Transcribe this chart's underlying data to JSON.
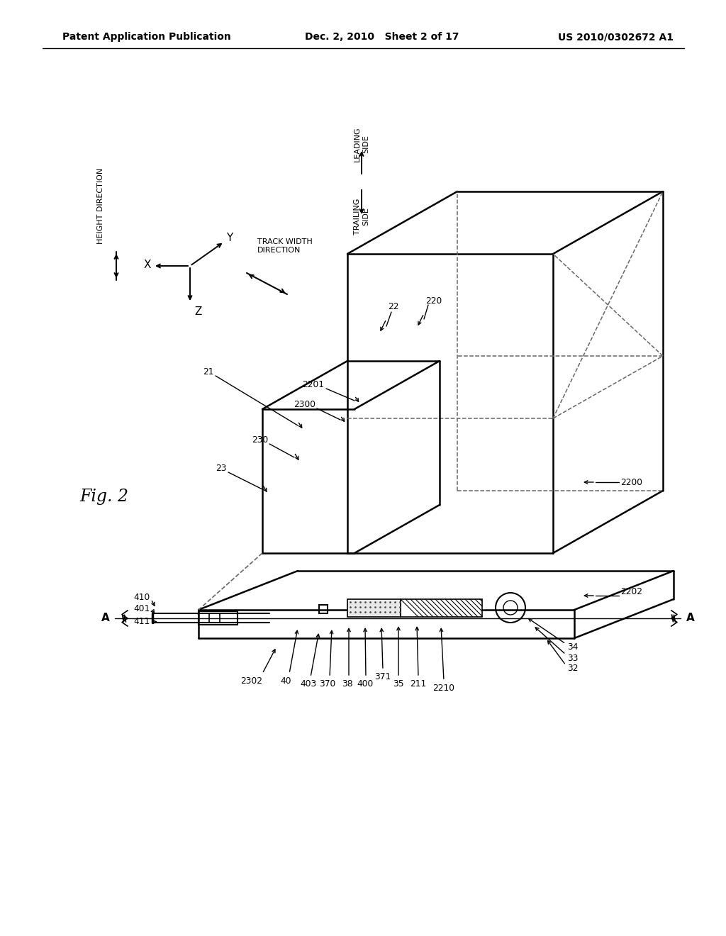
{
  "bg_color": "#ffffff",
  "header_left": "Patent Application Publication",
  "header_mid": "Dec. 2, 2010   Sheet 2 of 17",
  "header_right": "US 2010/0302672 A1",
  "fig_label": "Fig. 2"
}
